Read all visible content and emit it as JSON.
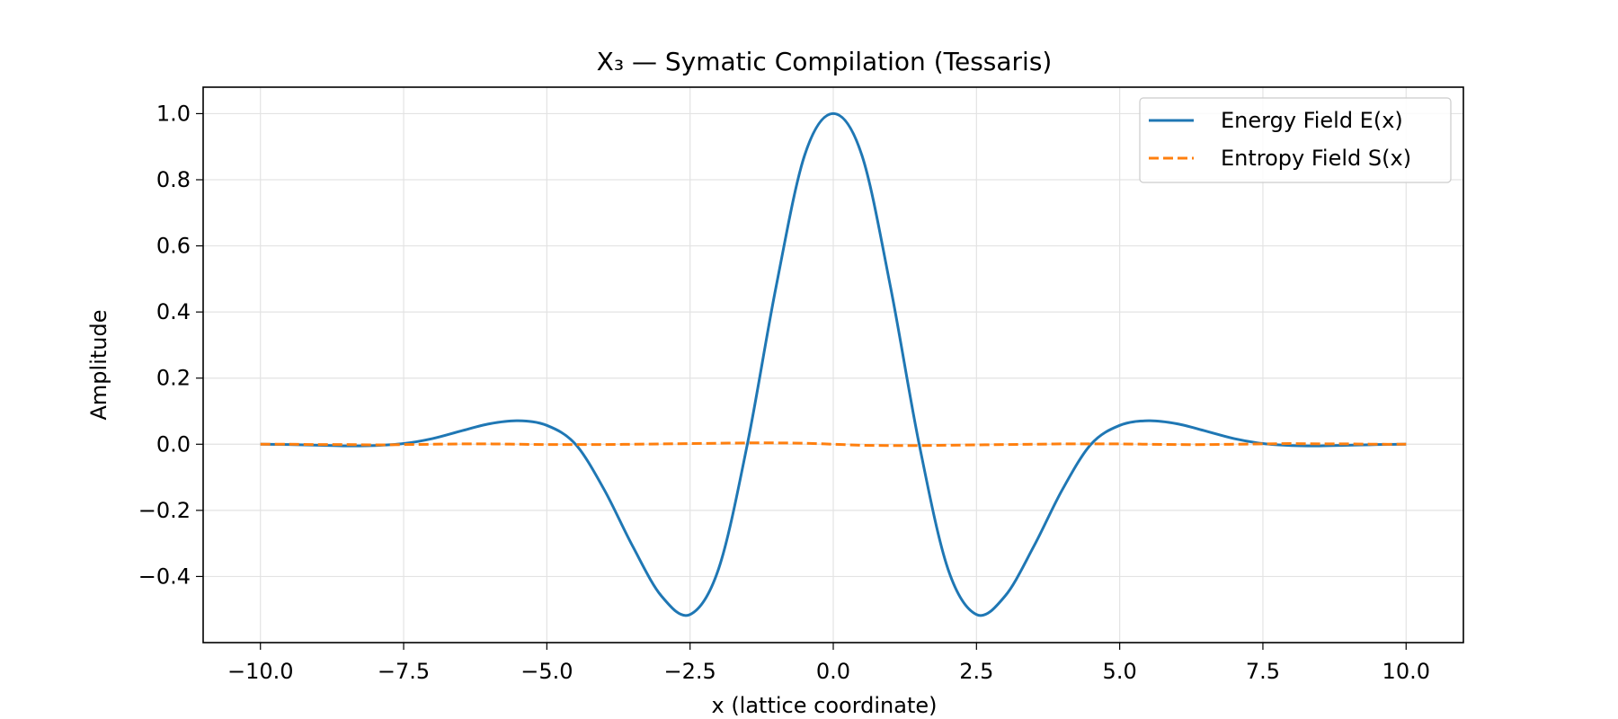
{
  "chart_data": {
    "type": "line",
    "title": "X₃ — Symatic Compilation (Tessaris)",
    "xlabel": "x (lattice coordinate)",
    "ylabel": "Amplitude",
    "xlim": [
      -11,
      11
    ],
    "ylim": [
      -0.6,
      1.08
    ],
    "x_ticks": [
      -10.0,
      -7.5,
      -5.0,
      -2.5,
      0.0,
      2.5,
      5.0,
      7.5,
      10.0
    ],
    "x_tick_labels": [
      "−10.0",
      "−7.5",
      "−5.0",
      "−2.5",
      "0.0",
      "2.5",
      "5.0",
      "7.5",
      "10.0"
    ],
    "y_ticks": [
      -0.4,
      -0.2,
      0.0,
      0.2,
      0.4,
      0.6,
      0.8,
      1.0
    ],
    "y_tick_labels": [
      "−0.4",
      "−0.2",
      "0.0",
      "0.2",
      "0.4",
      "0.6",
      "0.8",
      "1.0"
    ],
    "grid": true,
    "legend_position": "top-right",
    "x": [
      -10.0,
      -9.5,
      -9.0,
      -8.5,
      -8.0,
      -7.5,
      -7.0,
      -6.5,
      -6.0,
      -5.5,
      -5.0,
      -4.5,
      -4.0,
      -3.5,
      -3.0,
      -2.5,
      -2.0,
      -1.5,
      -1.0,
      -0.5,
      0.0,
      0.5,
      1.0,
      1.5,
      2.0,
      2.5,
      3.0,
      3.5,
      4.0,
      4.5,
      5.0,
      5.5,
      6.0,
      6.5,
      7.0,
      7.5,
      8.0,
      8.5,
      9.0,
      9.5,
      10.0
    ],
    "series": [
      {
        "name": "Energy Field E(x)",
        "color": "#1f77b4",
        "dash": "solid",
        "values": [
          0.0,
          -0.001,
          -0.003,
          -0.005,
          -0.004,
          0.002,
          0.017,
          0.04,
          0.062,
          0.071,
          0.057,
          0.0,
          -0.137,
          -0.309,
          -0.459,
          -0.515,
          -0.376,
          0.0,
          0.475,
          0.874,
          1.0,
          0.874,
          0.475,
          0.0,
          -0.376,
          -0.515,
          -0.459,
          -0.309,
          -0.137,
          0.0,
          0.057,
          0.071,
          0.062,
          0.04,
          0.017,
          0.002,
          -0.004,
          -0.005,
          -0.003,
          -0.001,
          0.0
        ]
      },
      {
        "name": "Entropy Field S(x)",
        "color": "#ff7f0e",
        "dash": "dashed",
        "values": [
          0.0,
          0.0,
          -0.001,
          -0.001,
          -0.002,
          -0.001,
          0.0,
          0.001,
          0.001,
          0.0,
          -0.001,
          -0.001,
          -0.001,
          0.0,
          0.001,
          0.002,
          0.003,
          0.004,
          0.004,
          0.003,
          0.0,
          -0.003,
          -0.004,
          -0.004,
          -0.003,
          -0.002,
          -0.001,
          0.0,
          0.001,
          0.001,
          0.001,
          0.0,
          -0.001,
          -0.001,
          0.0,
          0.001,
          0.002,
          0.001,
          0.001,
          0.0,
          0.0
        ]
      }
    ]
  }
}
